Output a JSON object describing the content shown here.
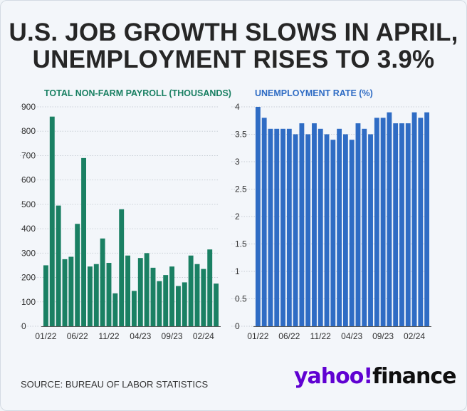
{
  "headline": {
    "line1": "U.S. JOB GROWTH SLOWS IN APRIL,",
    "line2": "UNEMPLOYMENT RISES TO 3.9%"
  },
  "source": "SOURCE: BUREAU OF LABOR STATISTICS",
  "logo": {
    "yahoo": "yahoo",
    "bang": "!",
    "finance": "finance"
  },
  "chart_data": [
    {
      "type": "bar",
      "title": "TOTAL NON-FARM PAYROLL (THOUSANDS)",
      "color": "#1a8063",
      "title_color": "#1a8063",
      "ylim": [
        0,
        900
      ],
      "yticks": [
        0,
        100,
        200,
        300,
        400,
        500,
        600,
        700,
        800,
        900
      ],
      "grid": true,
      "xtick_labels": [
        {
          "index": 0,
          "label": "01/22"
        },
        {
          "index": 5,
          "label": "06/22"
        },
        {
          "index": 10,
          "label": "11/22"
        },
        {
          "index": 15,
          "label": "04/23"
        },
        {
          "index": 20,
          "label": "09/23"
        },
        {
          "index": 25,
          "label": "02/24"
        }
      ],
      "values": [
        250,
        860,
        495,
        275,
        285,
        420,
        690,
        245,
        255,
        360,
        260,
        135,
        480,
        290,
        145,
        280,
        300,
        240,
        185,
        210,
        245,
        165,
        180,
        290,
        255,
        235,
        315,
        175
      ]
    },
    {
      "type": "bar",
      "title": "UNEMPLOYMENT RATE (%)",
      "color": "#2f6cc4",
      "title_color": "#2f6cc4",
      "ylim": [
        0,
        4
      ],
      "yticks": [
        0,
        0.5,
        1,
        1.5,
        2,
        2.5,
        3,
        3.5,
        4
      ],
      "grid": true,
      "xtick_labels": [
        {
          "index": 0,
          "label": "01/22"
        },
        {
          "index": 5,
          "label": "06/22"
        },
        {
          "index": 10,
          "label": "11/22"
        },
        {
          "index": 15,
          "label": "04/23"
        },
        {
          "index": 20,
          "label": "09/23"
        },
        {
          "index": 25,
          "label": "02/24"
        }
      ],
      "values": [
        4.0,
        3.8,
        3.6,
        3.6,
        3.6,
        3.6,
        3.5,
        3.7,
        3.5,
        3.7,
        3.6,
        3.5,
        3.4,
        3.6,
        3.5,
        3.4,
        3.7,
        3.6,
        3.5,
        3.8,
        3.8,
        3.9,
        3.7,
        3.7,
        3.7,
        3.9,
        3.8,
        3.9
      ]
    }
  ]
}
